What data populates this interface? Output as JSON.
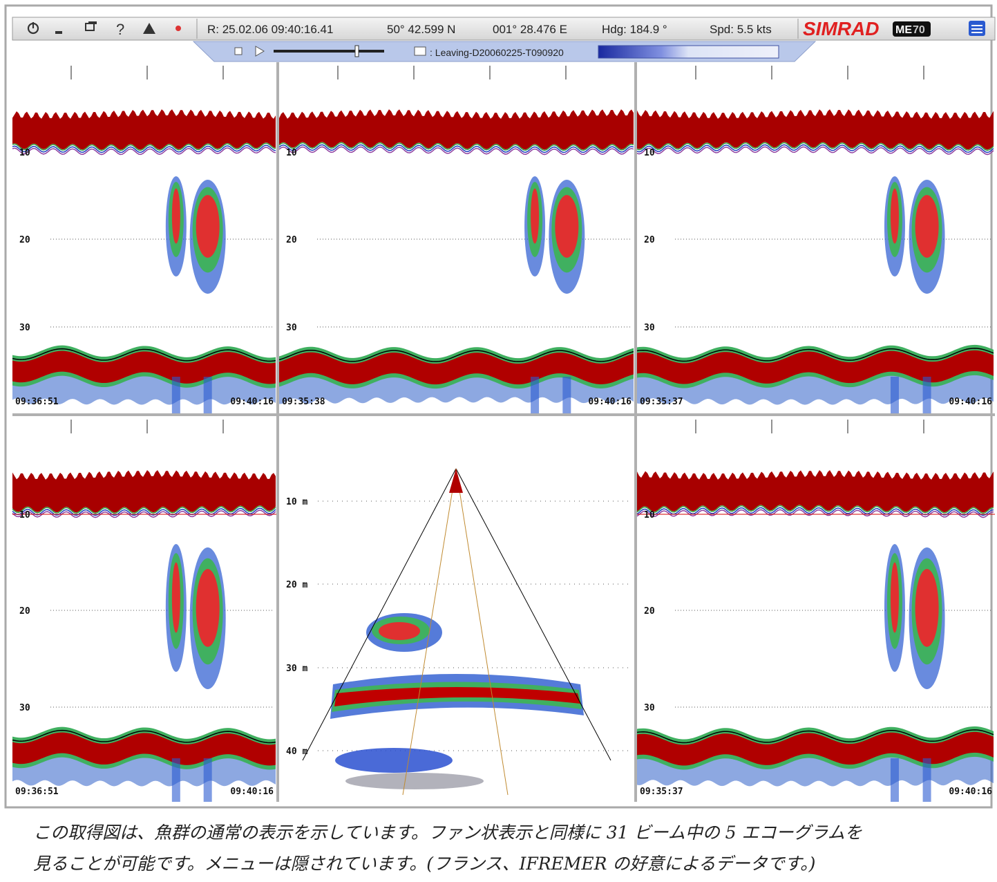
{
  "toolbar": {
    "record": "R: 25.02.06  09:40:16.41",
    "latitude": "50° 42.599 N",
    "longitude": "001° 28.476 E",
    "heading": "Hdg: 184.9 °",
    "speed": "Spd: 5.5 kts",
    "brand": "SIMRAD",
    "model_badge": "ME",
    "model_number": "70"
  },
  "replay": {
    "file": ": Leaving-D20060225-T090920"
  },
  "echograms": [
    {
      "depth_labels": [
        "10",
        "20",
        "30"
      ],
      "start_time": "09:36:51",
      "end_time": "09:40:16"
    },
    {
      "depth_labels": [
        "10",
        "20",
        "30"
      ],
      "start_time": "09:35:38",
      "end_time": "09:40:16"
    },
    {
      "depth_labels": [
        "10",
        "20",
        "30"
      ],
      "start_time": "09:35:37",
      "end_time": "09:40:16"
    },
    {
      "depth_labels": [
        "10",
        "20",
        "30"
      ],
      "start_time": "09:36:51",
      "end_time": "09:40:16"
    },
    {
      "depth_labels": [
        "10",
        "20",
        "30"
      ],
      "start_time": "09:35:37",
      "end_time": "09:40:16"
    }
  ],
  "fan": {
    "depth_labels": [
      "10 m",
      "20 m",
      "30 m",
      "40 m"
    ]
  },
  "caption": [
    "この取得図は、魚群の通常の表示を示しています。ファン状表示と同様に 31 ビーム中の 5 エコーグラムを",
    "見ることが可能です。メニューは隠されています。(フランス、IFREMER の好意によるデータです。)"
  ]
}
